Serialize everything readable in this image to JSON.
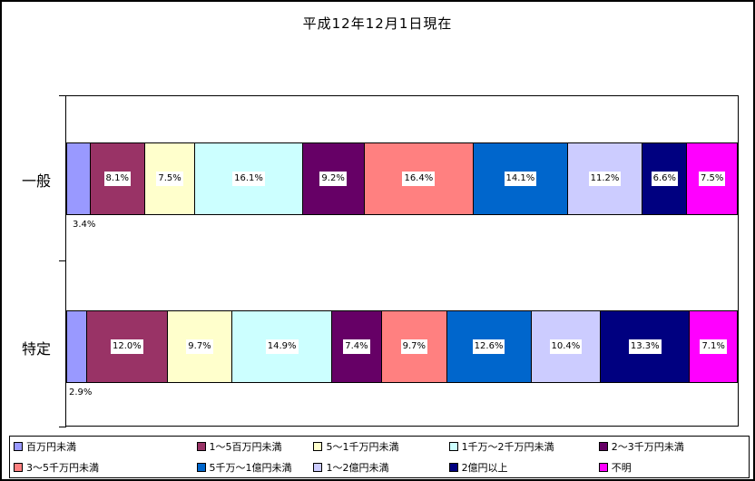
{
  "chart_data": {
    "type": "bar",
    "stacked": true,
    "orientation": "horizontal",
    "title": "平成12年12月1日現在",
    "xlabel": "",
    "ylabel": "",
    "xlim": [
      0,
      100
    ],
    "value_suffix": "%",
    "grid": false,
    "legend_position": "bottom",
    "categories": [
      "一般",
      "特定"
    ],
    "legend": [
      "百万円未満",
      "1～5百万円未満",
      "5～1千万円未満",
      "1千万～2千万円未満",
      "2～3千万円未満",
      "3～5千万円未満",
      "5千万～1億円未満",
      "1～2億円未満",
      "2億円以上",
      "不明"
    ],
    "colors": [
      "#9999FF",
      "#993366",
      "#FFFFCC",
      "#CCFFFF",
      "#660066",
      "#FF8080",
      "#0066CC",
      "#CCCCFF",
      "#000080",
      "#FF00FF"
    ],
    "rows": [
      {
        "category": "一般",
        "values": [
          3.4,
          8.1,
          7.5,
          16.1,
          9.2,
          16.4,
          14.1,
          11.2,
          6.6,
          7.5
        ]
      },
      {
        "category": "特定",
        "values": [
          2.9,
          12.0,
          9.7,
          14.9,
          7.4,
          9.7,
          12.6,
          10.4,
          13.3,
          7.1
        ]
      }
    ]
  }
}
